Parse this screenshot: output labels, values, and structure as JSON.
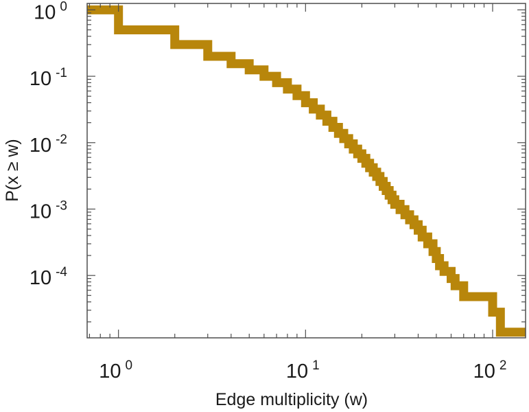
{
  "chart_data": {
    "type": "line",
    "subtype": "step-ccdf",
    "title": "",
    "xlabel": "Edge multiplicity (w)",
    "ylabel": "P(x ≥ w)",
    "xscale": "log",
    "yscale": "log",
    "xlim": [
      0.68,
      150
    ],
    "ylim": [
      1.15e-05,
      1.25
    ],
    "grid": false,
    "legend": "none",
    "line_color": "#b8860b",
    "x_ticks": [
      {
        "base": "10",
        "exp": "0",
        "value": 1
      },
      {
        "base": "10",
        "exp": "1",
        "value": 10
      },
      {
        "base": "10",
        "exp": "2",
        "value": 100
      }
    ],
    "y_ticks": [
      {
        "base": "10",
        "exp": "0",
        "value": 1
      },
      {
        "base": "10",
        "exp": "-1",
        "value": 0.1
      },
      {
        "base": "10",
        "exp": "-2",
        "value": 0.01
      },
      {
        "base": "10",
        "exp": "-3",
        "value": 0.001
      },
      {
        "base": "10",
        "exp": "-4",
        "value": 0.0001
      }
    ],
    "series": [
      {
        "name": "P(x ≥ w)",
        "x": [
          0.68,
          1,
          2,
          3,
          4,
          5,
          6,
          7,
          8,
          9,
          10,
          11,
          12,
          13,
          14,
          15,
          16,
          17,
          18,
          19,
          20,
          21,
          22,
          23,
          24,
          25,
          26,
          27,
          28,
          29,
          30,
          32,
          34,
          36,
          38,
          40,
          42,
          45,
          48,
          50,
          52,
          55,
          60,
          63,
          70,
          100,
          110,
          125
        ],
        "y": [
          1,
          0.5,
          0.3,
          0.2,
          0.155,
          0.125,
          0.1,
          0.08,
          0.064,
          0.051,
          0.04,
          0.032,
          0.026,
          0.021,
          0.017,
          0.0138,
          0.0115,
          0.0096,
          0.008,
          0.0068,
          0.0058,
          0.0049,
          0.0042,
          0.0036,
          0.0031,
          0.0026,
          0.0022,
          0.0019,
          0.00162,
          0.00138,
          0.00118,
          0.00098,
          0.00082,
          0.00069,
          0.00058,
          0.00048,
          0.00038,
          0.0003,
          0.00023,
          0.00018,
          0.00014,
          0.000115,
          9e-05,
          7e-05,
          4.8e-05,
          2.8e-05,
          1.4e-05,
          1.4e-05
        ]
      }
    ]
  }
}
